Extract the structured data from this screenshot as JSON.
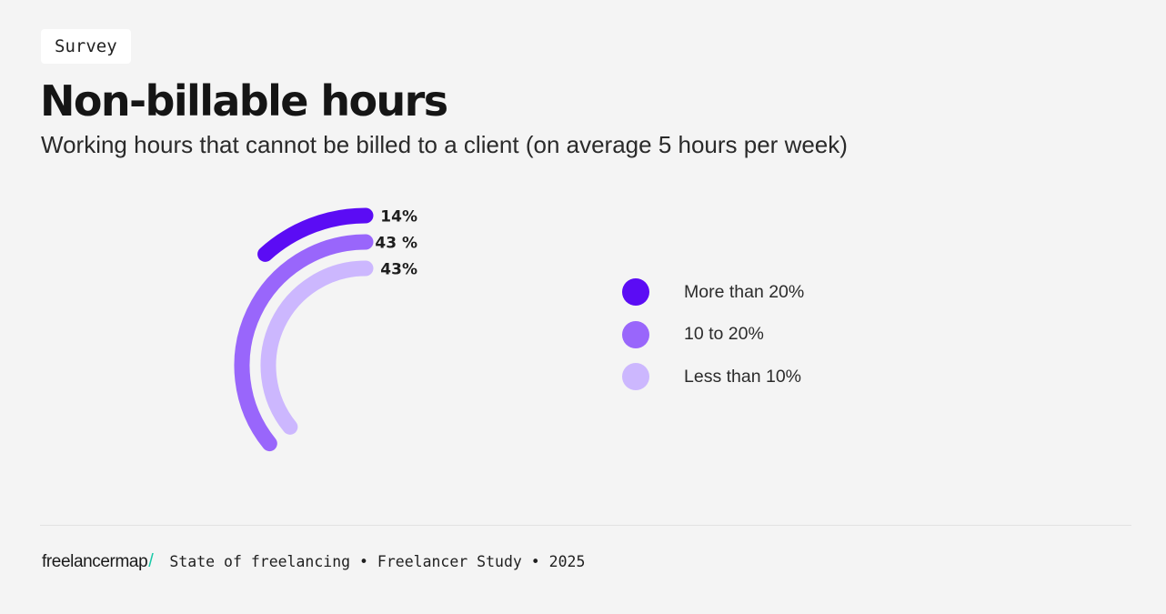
{
  "tag": "Survey",
  "title": "Non-billable hours",
  "subtitle": "Working hours that cannot be billed to a client (on average 5 hours per week)",
  "chart_data": {
    "type": "radial-bar",
    "title": "Non-billable hours",
    "subtitle": "Working hours that cannot be billed to a client (on average 5 hours per week)",
    "unit": "%",
    "max_value": 100,
    "categories": [
      "More than 20%",
      "10 to 20%",
      "Less than 10%"
    ],
    "values": [
      14,
      43,
      43
    ],
    "value_labels": [
      "14%",
      "43 %",
      "43%"
    ],
    "colors": [
      "#5b0cf4",
      "#9966fb",
      "#ccb7fe"
    ],
    "legend_position": "right"
  },
  "footer": {
    "brand": "freelancermap",
    "brand_slash": "/",
    "brand_accent_color": "#19c9a7",
    "text": "State of freelancing • Freelancer Study • 2025"
  }
}
